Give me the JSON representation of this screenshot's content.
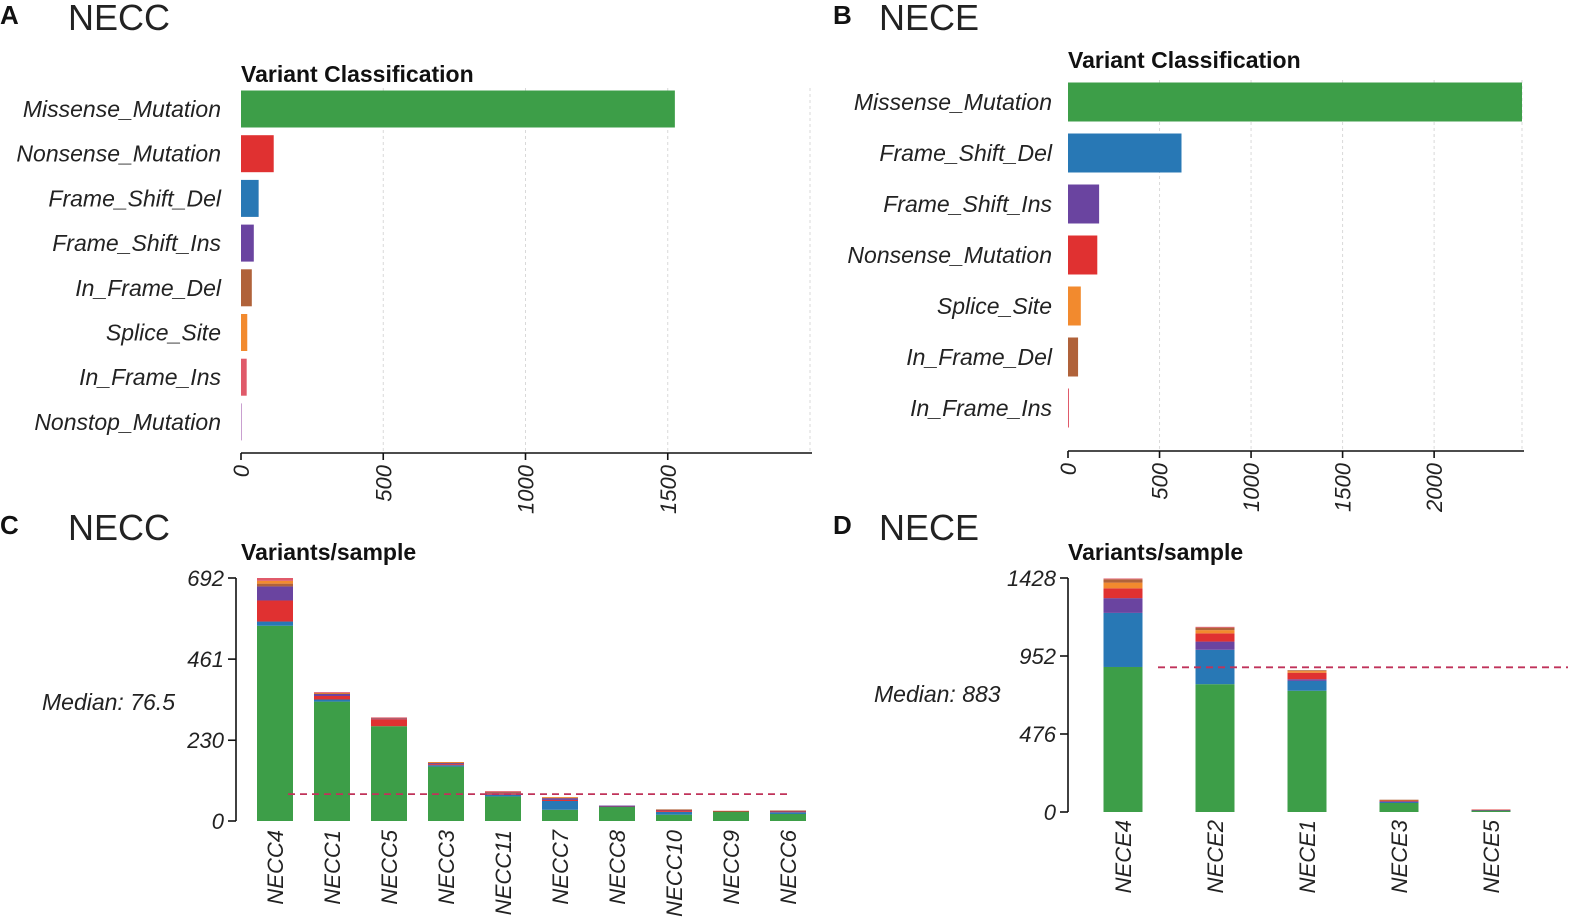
{
  "colors": {
    "Missense_Mutation": "#3d9e48",
    "Nonsense_Mutation": "#e03131",
    "Frame_Shift_Del": "#2878b5",
    "Frame_Shift_Ins": "#6a44a0",
    "In_Frame_Del": "#b0623a",
    "Splice_Site": "#f28a2e",
    "In_Frame_Ins": "#e05a6a",
    "Nonstop_Mutation": "#c9a0d0",
    "median_line": "#c0335a"
  },
  "chart_data": [
    {
      "panel": "A",
      "panel_title": "NECC",
      "type": "bar",
      "orientation": "horizontal",
      "title": "Variant Classification",
      "categories": [
        "Missense_Mutation",
        "Nonsense_Mutation",
        "Frame_Shift_Del",
        "Frame_Shift_Ins",
        "In_Frame_Del",
        "Splice_Site",
        "In_Frame_Ins",
        "Nonstop_Mutation"
      ],
      "values": [
        1525,
        115,
        62,
        45,
        38,
        22,
        20,
        1
      ],
      "xlim": [
        0,
        2000
      ],
      "xticks": [
        "0",
        "500",
        "1000",
        "1500"
      ],
      "tick_values": [
        0,
        500,
        1000,
        1500
      ],
      "grid": true
    },
    {
      "panel": "B",
      "panel_title": "NECE",
      "type": "bar",
      "orientation": "horizontal",
      "title": "Variant Classification",
      "categories": [
        "Missense_Mutation",
        "Frame_Shift_Del",
        "Frame_Shift_Ins",
        "Nonsense_Mutation",
        "Splice_Site",
        "In_Frame_Del",
        "In_Frame_Ins"
      ],
      "values": [
        2480,
        620,
        170,
        160,
        70,
        55,
        5
      ],
      "xlim": [
        0,
        2480
      ],
      "xticks": [
        "0",
        "500",
        "1000",
        "1500",
        "2000"
      ],
      "tick_values": [
        0,
        500,
        1000,
        1500,
        2000
      ],
      "grid": true
    },
    {
      "panel": "C",
      "panel_title": "NECC",
      "type": "bar",
      "stacked": true,
      "title": "Variants/sample",
      "categories": [
        "NECC4",
        "NECC1",
        "NECC5",
        "NECC3",
        "NECC11",
        "NECC7",
        "NECC8",
        "NECC10",
        "NECC9",
        "NECC6"
      ],
      "series": [
        {
          "name": "Missense_Mutation",
          "values": [
            556,
            340,
            270,
            155,
            70,
            32,
            40,
            18,
            28,
            20
          ]
        },
        {
          "name": "Frame_Shift_Del",
          "values": [
            12,
            6,
            0,
            4,
            5,
            25,
            2,
            8,
            0,
            5
          ]
        },
        {
          "name": "Nonsense_Mutation",
          "values": [
            60,
            10,
            20,
            3,
            4,
            3,
            1,
            4,
            1,
            3
          ]
        },
        {
          "name": "Frame_Shift_Ins",
          "values": [
            40,
            6,
            3,
            3,
            3,
            5,
            1,
            2,
            0,
            1
          ]
        },
        {
          "name": "In_Frame_Del",
          "values": [
            8,
            2,
            0,
            2,
            1,
            2,
            0,
            1,
            0,
            1
          ]
        },
        {
          "name": "Splice_Site",
          "values": [
            8,
            1,
            1,
            1,
            1,
            1,
            0,
            0,
            0,
            0
          ]
        },
        {
          "name": "In_Frame_Ins",
          "values": [
            8,
            2,
            1,
            0,
            1,
            0,
            0,
            0,
            0,
            0
          ]
        }
      ],
      "ylim": [
        0,
        692
      ],
      "yticks": [
        "0",
        "230",
        "461",
        "692"
      ],
      "tick_values": [
        0,
        230,
        461,
        692
      ],
      "median": 76.5,
      "median_label": "Median: 76.5"
    },
    {
      "panel": "D",
      "panel_title": "NECE",
      "type": "bar",
      "stacked": true,
      "title": "Variants/sample",
      "categories": [
        "NECE4",
        "NECE2",
        "NECE1",
        "NECE3",
        "NECE5"
      ],
      "series": [
        {
          "name": "Missense_Mutation",
          "values": [
            885,
            780,
            740,
            55,
            10
          ]
        },
        {
          "name": "Frame_Shift_Del",
          "values": [
            330,
            210,
            60,
            8,
            2
          ]
        },
        {
          "name": "Frame_Shift_Ins",
          "values": [
            90,
            50,
            10,
            2,
            0
          ]
        },
        {
          "name": "Nonsense_Mutation",
          "values": [
            60,
            50,
            40,
            5,
            3
          ]
        },
        {
          "name": "Splice_Site",
          "values": [
            35,
            20,
            10,
            3,
            0
          ]
        },
        {
          "name": "In_Frame_Del",
          "values": [
            20,
            15,
            5,
            2,
            0
          ]
        },
        {
          "name": "In_Frame_Ins",
          "values": [
            5,
            5,
            0,
            0,
            0
          ]
        }
      ],
      "ylim": [
        0,
        1428
      ],
      "yticks": [
        "0",
        "476",
        "952",
        "1428"
      ],
      "tick_values": [
        0,
        476,
        952,
        1428
      ],
      "median": 883,
      "median_label": "Median: 883"
    }
  ]
}
